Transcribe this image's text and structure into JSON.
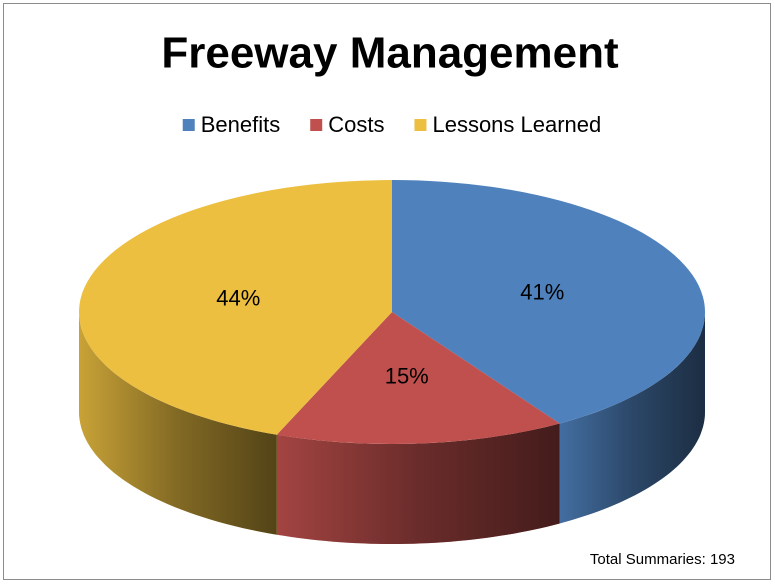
{
  "chart_data": {
    "type": "pie",
    "title": "Freeway Management",
    "categories": [
      "Benefits",
      "Costs",
      "Lessons Learned"
    ],
    "values": [
      41,
      15,
      44
    ],
    "value_labels": [
      "41%",
      "15%",
      "44%"
    ],
    "colors": [
      "#4f81bd",
      "#c0504d",
      "#ecbf41"
    ],
    "legend": "top",
    "annotation": "Total Summaries: 193"
  }
}
